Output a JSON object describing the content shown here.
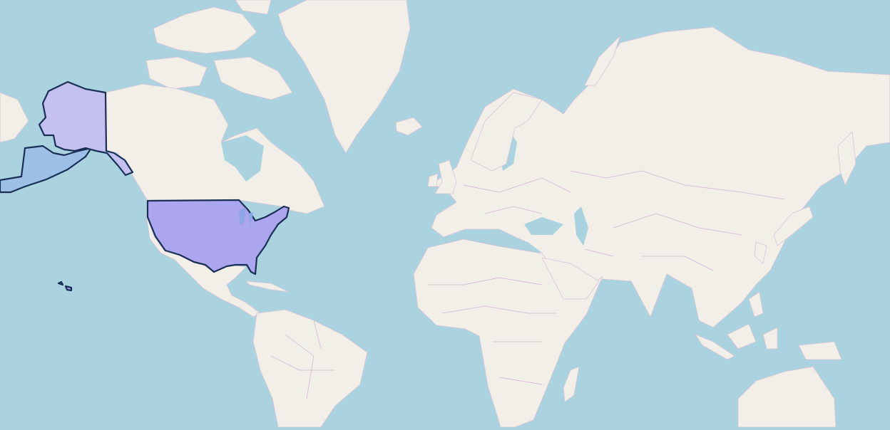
{
  "map": {
    "colors": {
      "ocean": "#aad3df",
      "land": "#f2efe9",
      "country_border": "#cfaed0",
      "highlight_fill_contiguous": "#aca6ee",
      "highlight_fill_alaska": "#c4c0f0",
      "highlight_fill_aleutian_area": "#9fc0e6",
      "highlight_stroke": "#1a2f55"
    },
    "highlighted_regions": [
      "contiguous-united-states",
      "alaska",
      "hawaii"
    ]
  }
}
